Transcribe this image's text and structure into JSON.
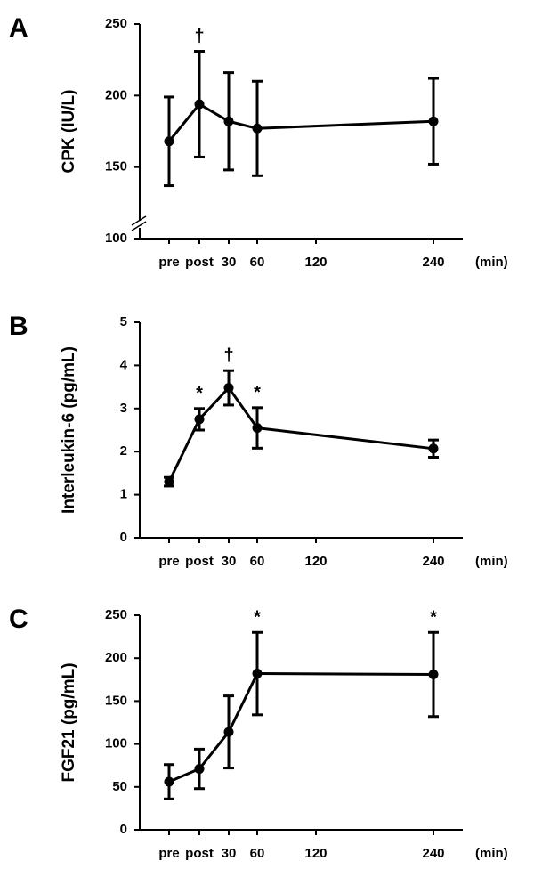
{
  "chart_data": [
    {
      "type": "line",
      "label": "A",
      "ylabel": "CPK (IU/L)",
      "xlabel": "(min)",
      "categories": [
        "pre",
        "post",
        "30",
        "60",
        "120",
        "240"
      ],
      "series": [
        {
          "color": "#000000",
          "values": [
            168,
            194,
            182,
            177,
            null,
            182
          ],
          "errors": [
            31,
            37,
            34,
            33,
            null,
            30
          ],
          "annotations": [
            null,
            "†",
            null,
            null,
            null,
            null
          ]
        }
      ],
      "ylim": [
        100,
        250
      ],
      "yticks": [
        100,
        150,
        200,
        250
      ],
      "axis_break": true
    },
    {
      "type": "line",
      "label": "B",
      "ylabel": "Interleukin-6 (pg/mL)",
      "xlabel": "(min)",
      "categories": [
        "pre",
        "post",
        "30",
        "60",
        "120",
        "240"
      ],
      "series": [
        {
          "color": "#000000",
          "values": [
            1.3,
            2.75,
            3.48,
            2.55,
            null,
            2.07
          ],
          "errors": [
            0.1,
            0.25,
            0.4,
            0.47,
            null,
            0.2
          ],
          "annotations": [
            null,
            "*",
            "†",
            "*",
            null,
            null
          ]
        }
      ],
      "ylim": [
        0,
        5
      ],
      "yticks": [
        0,
        1,
        2,
        3,
        4,
        5
      ],
      "axis_break": false
    },
    {
      "type": "line",
      "label": "C",
      "ylabel": "FGF21 (pg/mL)",
      "xlabel": "(min)",
      "categories": [
        "pre",
        "post",
        "30",
        "60",
        "120",
        "240"
      ],
      "series": [
        {
          "color": "#000000",
          "values": [
            56,
            71,
            114,
            182,
            null,
            181
          ],
          "errors": [
            20,
            23,
            42,
            48,
            null,
            49
          ],
          "annotations": [
            null,
            null,
            null,
            "*",
            null,
            "*"
          ]
        }
      ],
      "ylim": [
        0,
        250
      ],
      "yticks": [
        0,
        50,
        100,
        150,
        200,
        250
      ],
      "axis_break": false
    }
  ]
}
